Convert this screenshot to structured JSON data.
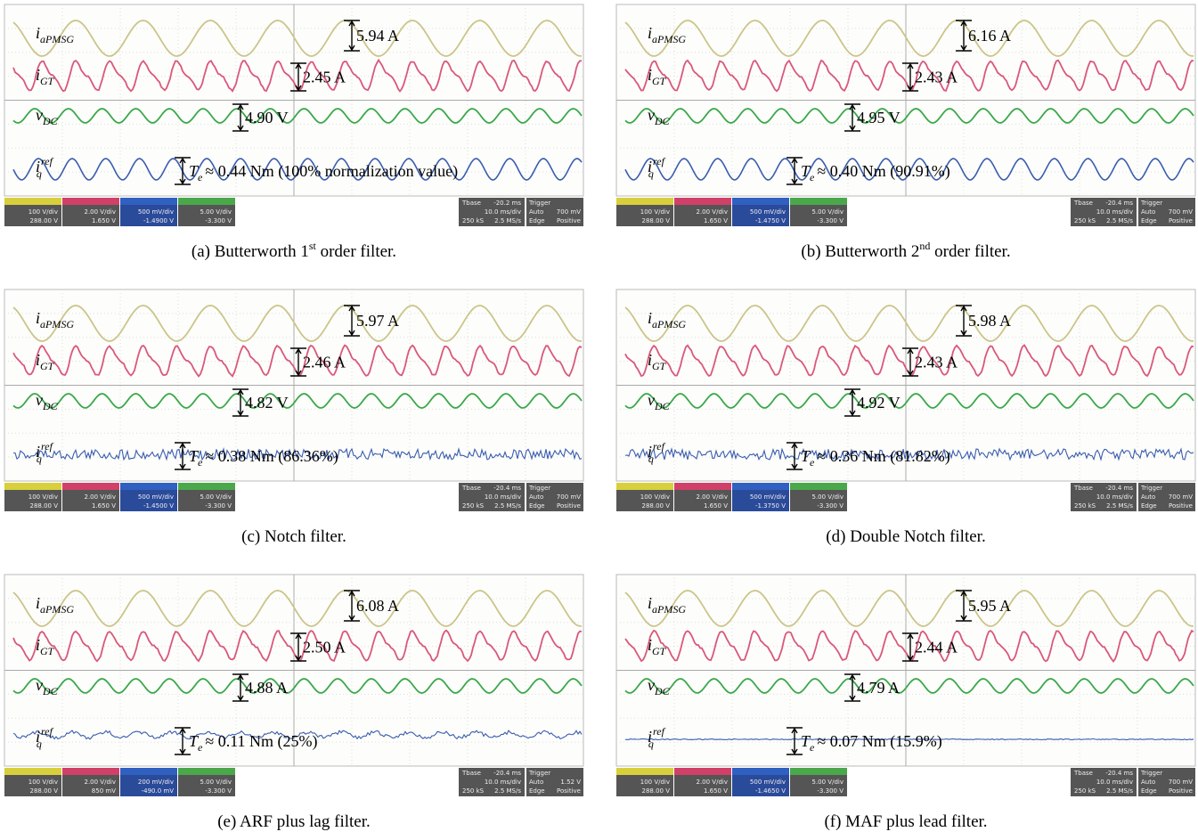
{
  "signal_labels": [
    {
      "symbol": "i",
      "sub": "aPMSG"
    },
    {
      "symbol": "i",
      "sub": "GT"
    },
    {
      "symbol": "v",
      "sub": "DC"
    },
    {
      "symbol": "i",
      "sub": "q",
      "sup": "ref"
    }
  ],
  "torque_symbol": {
    "symbol": "T",
    "sub": "e"
  },
  "scope_static": {
    "tbase_label": "Tbase",
    "timebase": "10.0 ms/div",
    "samples": "250 kS",
    "rate": "2.5 MS/s",
    "trigger_label": "Trigger",
    "mode": "Auto",
    "edge": "Edge",
    "slope": "Positive"
  },
  "panels": [
    {
      "caption": {
        "text": "(a) Butterworth 1",
        "sup": "st",
        "rest": " order filter."
      },
      "amplitudes": [
        "5.94 A",
        "2.45 A",
        "4.90 V"
      ],
      "torque": "≈ 0.44 Nm (100% normalization value)",
      "scope": {
        "channels": [
          [
            "100 V/div",
            "288.00 V"
          ],
          [
            "2.00 V/div",
            "1.650 V"
          ],
          [
            "500 mV/div",
            "-1.4900 V"
          ],
          [
            "5.00 V/div",
            "-3.300 V"
          ]
        ],
        "tbase": "-20.2 ms",
        "trigger_level": "700 mV"
      }
    },
    {
      "caption": {
        "text": "(b) Butterworth 2",
        "sup": "nd",
        "rest": " order filter."
      },
      "amplitudes": [
        "6.16 A",
        "2.43 A",
        "4.95 V"
      ],
      "torque": "≈ 0.40 Nm (90.91%)",
      "scope": {
        "channels": [
          [
            "100 V/div",
            "288.00 V"
          ],
          [
            "2.00 V/div",
            "1.650 V"
          ],
          [
            "500 mV/div",
            "-1.4750 V"
          ],
          [
            "5.00 V/div",
            "-3.300 V"
          ]
        ],
        "tbase": "-20.4 ms",
        "trigger_level": "700 mV"
      }
    },
    {
      "caption": {
        "text": "(c) Notch filter."
      },
      "amplitudes": [
        "5.97 A",
        "2.46 A",
        "4.82 V"
      ],
      "torque": "≈ 0.38 Nm (86.36%)",
      "scope": {
        "channels": [
          [
            "100 V/div",
            "288.00 V"
          ],
          [
            "2.00 V/div",
            "1.650 V"
          ],
          [
            "500 mV/div",
            "-1.4500 V"
          ],
          [
            "5.00 V/div",
            "-3.300 V"
          ]
        ],
        "tbase": "-20.4 ms",
        "trigger_level": "700 mV"
      }
    },
    {
      "caption": {
        "text": "(d) Double Notch filter."
      },
      "amplitudes": [
        "5.98 A",
        "2.43 A",
        "4.92 V"
      ],
      "torque": "≈ 0.36 Nm (81.82%)",
      "scope": {
        "channels": [
          [
            "100 V/div",
            "288.00 V"
          ],
          [
            "2.00 V/div",
            "1.650 V"
          ],
          [
            "500 mV/div",
            "-1.3750 V"
          ],
          [
            "5.00 V/div",
            "-3.300 V"
          ]
        ],
        "tbase": "-20.4 ms",
        "trigger_level": "700 mV"
      }
    },
    {
      "caption": {
        "text": "(e) ARF plus lag filter."
      },
      "amplitudes": [
        "6.08 A",
        "2.50 A",
        "4.88 A"
      ],
      "torque": "≈ 0.11 Nm (25%)",
      "scope": {
        "channels": [
          [
            "100 V/div",
            "288.00 V"
          ],
          [
            "2.00 V/div",
            "850 mV"
          ],
          [
            "200 mV/div",
            "-490.0 mV"
          ],
          [
            "5.00 V/div",
            "-3.300 V"
          ]
        ],
        "tbase": "-20.4 ms",
        "trigger_level": "1.52 V"
      }
    },
    {
      "caption": {
        "text": "(f) MAF plus lead filter."
      },
      "amplitudes": [
        "5.95 A",
        "2.44 A",
        "4.79 A"
      ],
      "torque": "≈ 0.07 Nm (15.9%)",
      "scope": {
        "channels": [
          [
            "100 V/div",
            "288.00 V"
          ],
          [
            "2.00 V/div",
            "1.650 V"
          ],
          [
            "500 mV/div",
            "-1.4650 V"
          ],
          [
            "5.00 V/div",
            "-3.300 V"
          ]
        ],
        "tbase": "-20.4 ms",
        "trigger_level": "700 mV"
      }
    }
  ]
}
